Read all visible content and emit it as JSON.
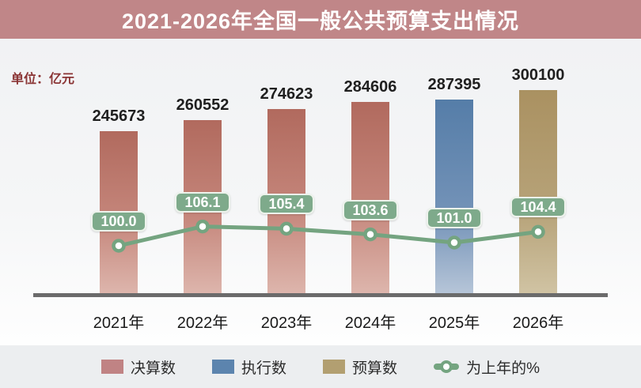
{
  "header": {
    "title": "2021-2026年全国一般公共预算支出情况"
  },
  "unit_label": "单位：亿元",
  "chart_data": {
    "type": "bar",
    "title": "2021-2026年全国一般公共预算支出情况",
    "unit": "亿元",
    "categories": [
      "2021年",
      "2022年",
      "2023年",
      "2024年",
      "2025年",
      "2026年"
    ],
    "series": [
      {
        "name": "决算数",
        "type": "bar",
        "values": [
          245673,
          260552,
          274623,
          284606,
          null,
          null
        ]
      },
      {
        "name": "执行数",
        "type": "bar",
        "values": [
          null,
          null,
          null,
          null,
          287395,
          null
        ]
      },
      {
        "name": "预算数",
        "type": "bar",
        "values": [
          null,
          null,
          null,
          null,
          null,
          300100
        ]
      },
      {
        "name": "为上年的%",
        "type": "line",
        "values": [
          100.0,
          106.1,
          105.4,
          103.6,
          101.0,
          104.4
        ]
      }
    ],
    "line_label_format": "one_decimal",
    "grid": false,
    "legend_position": "bottom"
  },
  "legend": {
    "items": [
      {
        "label": "决算数",
        "type": "bar",
        "color": "#C08384"
      },
      {
        "label": "执行数",
        "type": "bar",
        "color": "#5C84AE"
      },
      {
        "label": "预算数",
        "type": "bar",
        "color": "#B29F71"
      },
      {
        "label": "为上年的%",
        "type": "line",
        "color": "#74A480"
      }
    ]
  },
  "colors": {
    "titlebar_bg": "#C08688",
    "title_text": "#FFFFFF",
    "unit_text": "#8A3434",
    "bar_final": "#B87063",
    "bar_execution": "#5C84AE",
    "bar_budget": "#AA9161",
    "trend_line": "#74A480",
    "trend_label_bg": "#7EAA8B",
    "axis_line": "#6B6B6B",
    "plot_bg": "#F1F2F4",
    "legend_bg": "#ECEEF0"
  }
}
